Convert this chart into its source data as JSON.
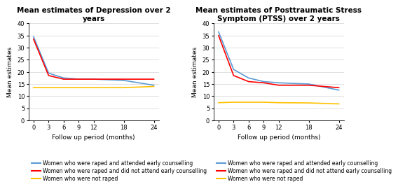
{
  "xvals": [
    0,
    3,
    6,
    9,
    12,
    18,
    24
  ],
  "depression": {
    "blue": [
      34.5,
      19.5,
      17.5,
      17.0,
      17.0,
      16.5,
      14.5
    ],
    "red": [
      33.5,
      18.5,
      17.0,
      17.0,
      17.0,
      17.0,
      17.0
    ],
    "yellow": [
      13.5,
      13.5,
      13.5,
      13.5,
      13.5,
      13.5,
      14.0
    ]
  },
  "ptss": {
    "blue": [
      36.5,
      21.0,
      17.5,
      16.0,
      15.5,
      15.0,
      12.5
    ],
    "red": [
      35.0,
      18.5,
      16.0,
      15.5,
      14.5,
      14.5,
      13.5
    ],
    "yellow": [
      7.3,
      7.5,
      7.5,
      7.5,
      7.3,
      7.2,
      6.8
    ]
  },
  "title_depression": "Mean estimates of Depression over 2\nyears",
  "title_ptss": "Mean estimates of Posttraumatic Stress\nSymptom (PTSS) over 2 years",
  "xlabel": "Follow up period (months)",
  "ylabel": "Mean estimates",
  "ylim": [
    0,
    40
  ],
  "yticks": [
    0,
    5,
    10,
    15,
    20,
    25,
    30,
    35,
    40
  ],
  "colors": {
    "blue": "#5B9BD5",
    "red": "#FF0000",
    "yellow": "#FFC000"
  },
  "legend_labels": [
    "Women who were raped and attended early counselling",
    "Women who were raped and did not attend early counselling",
    "Women who were not raped"
  ],
  "background_color": "#FFFFFF",
  "title_fontsize": 7.5,
  "axis_fontsize": 6.5,
  "tick_fontsize": 6,
  "legend_fontsize": 5.5
}
